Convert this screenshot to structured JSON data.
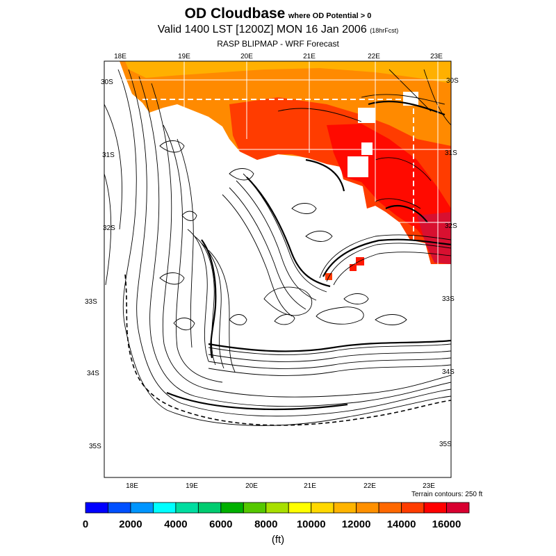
{
  "title": {
    "main": "OD Cloudbase",
    "condition": "where OD Potential > 0",
    "valid": "Valid 1400 LST [1200Z] MON 16 Jan 2006",
    "forecast_tag": "(18hrFcst)",
    "model": "RASP BLIPMAP - WRF Forecast"
  },
  "map": {
    "top_lon_labels": [
      "18E",
      "19E",
      "20E",
      "21E",
      "22E",
      "23E"
    ],
    "bottom_lon_labels": [
      "18E",
      "19E",
      "20E",
      "21E",
      "22E",
      "23E"
    ],
    "left_lat_labels": [
      "30S",
      "31S",
      "32S",
      "33S",
      "34S",
      "35S"
    ],
    "right_lat_labels": [
      "30S",
      "31S",
      "32S",
      "33S",
      "34S",
      "35S"
    ],
    "terrain_note": "Terrain contours: 250 ft",
    "cloudbase_fill_range_ft": [
      12500,
      16500
    ]
  },
  "colorbar": {
    "unit": "(ft)",
    "ticks": [
      "0",
      "2000",
      "4000",
      "6000",
      "8000",
      "10000",
      "12000",
      "14000",
      "16000"
    ],
    "colors": [
      "#0000ff",
      "#0050ff",
      "#0095ff",
      "#00ffff",
      "#00dda0",
      "#00cc70",
      "#00b000",
      "#55c800",
      "#a8df00",
      "#ffff00",
      "#ffd800",
      "#ffb400",
      "#ff9000",
      "#ff6800",
      "#ff3c00",
      "#ff0000",
      "#d80030"
    ]
  }
}
